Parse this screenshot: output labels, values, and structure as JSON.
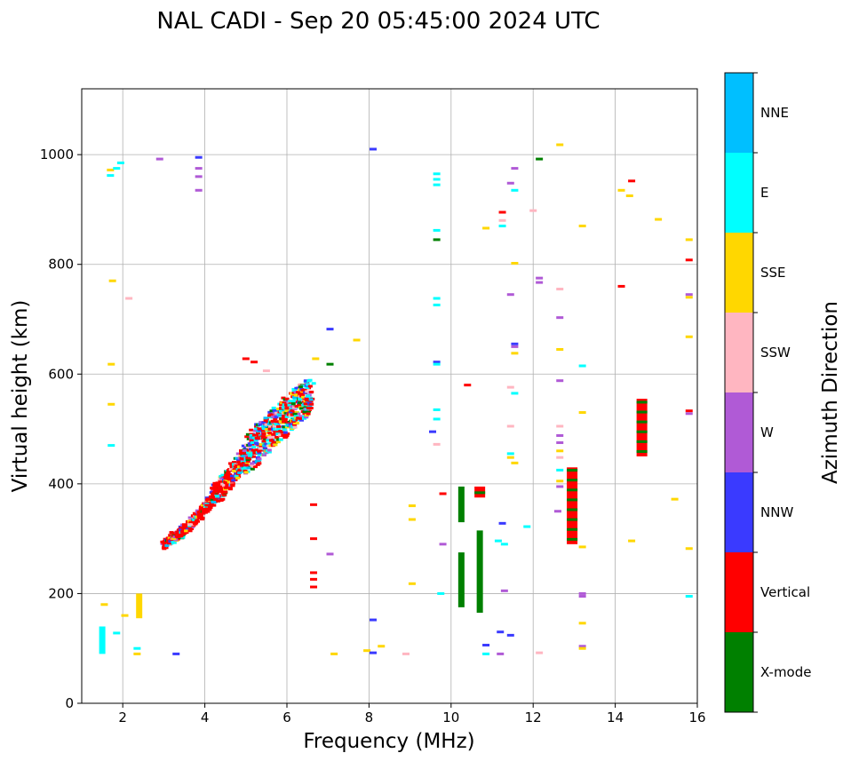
{
  "chart_data": {
    "type": "scatter",
    "title": "NAL CADI - Sep 20 05:45:00 2024 UTC",
    "xlabel": "Frequency (MHz)",
    "ylabel": "Virtual height (km)",
    "xlim": [
      1,
      16
    ],
    "ylim": [
      0,
      1120
    ],
    "xticks": [
      2,
      4,
      6,
      8,
      10,
      12,
      14,
      16
    ],
    "yticks": [
      0,
      200,
      400,
      600,
      800,
      1000
    ],
    "grid": true,
    "colorbar": {
      "label": "Azimuth Direction",
      "categories": [
        {
          "name": "X-mode",
          "color": "#008000"
        },
        {
          "name": "Vertical",
          "color": "#ff0000"
        },
        {
          "name": "NNW",
          "color": "#3a3aff"
        },
        {
          "name": "W",
          "color": "#b05ad6"
        },
        {
          "name": "SSW",
          "color": "#ffb6c1"
        },
        {
          "name": "SSE",
          "color": "#ffd700"
        },
        {
          "name": "E",
          "color": "#00ffff"
        },
        {
          "name": "NNE",
          "color": "#00bfff"
        }
      ]
    },
    "trace": {
      "description": "dense echo trace rising with frequency",
      "points": [
        [
          3.0,
          288
        ],
        [
          3.2,
          300
        ],
        [
          3.4,
          310
        ],
        [
          3.6,
          322
        ],
        [
          3.8,
          338
        ],
        [
          4.0,
          355
        ],
        [
          4.2,
          375
        ],
        [
          4.4,
          392
        ],
        [
          4.6,
          410
        ],
        [
          4.8,
          430
        ],
        [
          5.0,
          450
        ],
        [
          5.2,
          465
        ],
        [
          5.4,
          480
        ],
        [
          5.6,
          495
        ],
        [
          5.8,
          510
        ],
        [
          6.0,
          525
        ],
        [
          6.2,
          540
        ],
        [
          6.4,
          550
        ],
        [
          6.6,
          560
        ]
      ]
    },
    "bars": [
      {
        "x": 10.25,
        "y0": 175,
        "y1": 275,
        "dir": "X-mode"
      },
      {
        "x": 10.25,
        "y0": 330,
        "y1": 395,
        "dir": "X-mode"
      },
      {
        "x": 10.7,
        "y0": 165,
        "y1": 315,
        "dir": "X-mode"
      },
      {
        "x": 10.7,
        "y0": 375,
        "y1": 395,
        "dir": "Vertical"
      },
      {
        "x": 12.95,
        "y0": 290,
        "y1": 430,
        "dir": "Vertical"
      },
      {
        "x": 14.65,
        "y0": 450,
        "y1": 555,
        "dir": "Vertical"
      },
      {
        "x": 2.4,
        "y0": 155,
        "y1": 200,
        "dir": "SSE"
      },
      {
        "x": 1.5,
        "y0": 90,
        "y1": 140,
        "dir": "E"
      }
    ],
    "points": [
      [
        1.55,
        180,
        "SSE"
      ],
      [
        1.7,
        972,
        "SSE"
      ],
      [
        1.85,
        975,
        "E"
      ],
      [
        1.95,
        985,
        "E"
      ],
      [
        1.7,
        962,
        "E"
      ],
      [
        1.75,
        770,
        "SSE"
      ],
      [
        2.15,
        738,
        "SSW"
      ],
      [
        1.72,
        618,
        "SSE"
      ],
      [
        1.72,
        545,
        "SSE"
      ],
      [
        1.72,
        470,
        "E"
      ],
      [
        2.05,
        160,
        "SSE"
      ],
      [
        1.85,
        128,
        "E"
      ],
      [
        2.35,
        100,
        "E"
      ],
      [
        2.35,
        90,
        "SSE"
      ],
      [
        2.9,
        992,
        "W"
      ],
      [
        3.85,
        995,
        "NNW"
      ],
      [
        3.85,
        975,
        "W"
      ],
      [
        3.85,
        960,
        "W"
      ],
      [
        3.85,
        935,
        "W"
      ],
      [
        3.3,
        90,
        "NNW"
      ],
      [
        5.0,
        628,
        "Vertical"
      ],
      [
        5.2,
        622,
        "Vertical"
      ],
      [
        5.5,
        606,
        "SSW"
      ],
      [
        6.7,
        628,
        "SSE"
      ],
      [
        7.05,
        618,
        "X-mode"
      ],
      [
        7.05,
        682,
        "NNW"
      ],
      [
        7.7,
        662,
        "SSE"
      ],
      [
        6.65,
        362,
        "Vertical"
      ],
      [
        6.65,
        300,
        "Vertical"
      ],
      [
        6.65,
        238,
        "Vertical"
      ],
      [
        6.65,
        226,
        "Vertical"
      ],
      [
        6.65,
        212,
        "Vertical"
      ],
      [
        7.05,
        272,
        "W"
      ],
      [
        7.15,
        90,
        "SSE"
      ],
      [
        8.1,
        1010,
        "NNW"
      ],
      [
        8.1,
        152,
        "NNW"
      ],
      [
        8.3,
        104,
        "SSE"
      ],
      [
        7.95,
        96,
        "SSE"
      ],
      [
        8.1,
        92,
        "NNW"
      ],
      [
        8.9,
        90,
        "SSW"
      ],
      [
        9.05,
        360,
        "SSE"
      ],
      [
        9.05,
        335,
        "SSE"
      ],
      [
        9.05,
        218,
        "SSE"
      ],
      [
        9.65,
        965,
        "E"
      ],
      [
        9.65,
        955,
        "E"
      ],
      [
        9.65,
        945,
        "E"
      ],
      [
        9.65,
        862,
        "E"
      ],
      [
        9.65,
        845,
        "X-mode"
      ],
      [
        9.65,
        738,
        "E"
      ],
      [
        9.65,
        726,
        "E"
      ],
      [
        9.65,
        622,
        "NNW"
      ],
      [
        9.65,
        618,
        "E"
      ],
      [
        9.65,
        535,
        "E"
      ],
      [
        9.65,
        518,
        "E"
      ],
      [
        9.55,
        495,
        "NNW"
      ],
      [
        9.65,
        472,
        "SSW"
      ],
      [
        9.8,
        382,
        "Vertical"
      ],
      [
        9.8,
        290,
        "W"
      ],
      [
        9.75,
        200,
        "E"
      ],
      [
        10.85,
        106,
        "NNW"
      ],
      [
        10.85,
        90,
        "E"
      ],
      [
        11.2,
        90,
        "W"
      ],
      [
        10.4,
        580,
        "Vertical"
      ],
      [
        10.85,
        866,
        "SSE"
      ],
      [
        11.25,
        895,
        "Vertical"
      ],
      [
        11.25,
        880,
        "SSW"
      ],
      [
        11.25,
        870,
        "E"
      ],
      [
        11.45,
        948,
        "W"
      ],
      [
        11.55,
        935,
        "E"
      ],
      [
        11.55,
        975,
        "W"
      ],
      [
        11.55,
        802,
        "SSE"
      ],
      [
        11.45,
        745,
        "W"
      ],
      [
        11.55,
        655,
        "NNW"
      ],
      [
        11.55,
        650,
        "W"
      ],
      [
        11.55,
        638,
        "SSE"
      ],
      [
        11.45,
        576,
        "SSW"
      ],
      [
        11.55,
        565,
        "E"
      ],
      [
        11.45,
        505,
        "SSW"
      ],
      [
        11.45,
        455,
        "E"
      ],
      [
        11.45,
        448,
        "SSE"
      ],
      [
        11.55,
        438,
        "SSE"
      ],
      [
        11.25,
        328,
        "NNW"
      ],
      [
        11.15,
        296,
        "E"
      ],
      [
        11.3,
        290,
        "E"
      ],
      [
        11.85,
        322,
        "E"
      ],
      [
        11.3,
        205,
        "W"
      ],
      [
        11.2,
        130,
        "NNW"
      ],
      [
        11.45,
        124,
        "NNW"
      ],
      [
        12.0,
        898,
        "SSW"
      ],
      [
        12.15,
        992,
        "X-mode"
      ],
      [
        12.15,
        775,
        "W"
      ],
      [
        12.15,
        767,
        "W"
      ],
      [
        12.15,
        92,
        "SSW"
      ],
      [
        12.65,
        1018,
        "SSE"
      ],
      [
        12.65,
        755,
        "SSW"
      ],
      [
        12.65,
        703,
        "W"
      ],
      [
        12.65,
        645,
        "SSE"
      ],
      [
        12.65,
        588,
        "W"
      ],
      [
        12.65,
        505,
        "SSW"
      ],
      [
        12.65,
        488,
        "W"
      ],
      [
        12.65,
        475,
        "W"
      ],
      [
        12.65,
        460,
        "SSE"
      ],
      [
        12.65,
        448,
        "SSW"
      ],
      [
        12.65,
        425,
        "E"
      ],
      [
        12.65,
        405,
        "SSE"
      ],
      [
        12.65,
        395,
        "W"
      ],
      [
        12.6,
        350,
        "W"
      ],
      [
        13.2,
        870,
        "SSE"
      ],
      [
        13.2,
        615,
        "E"
      ],
      [
        13.2,
        530,
        "SSE"
      ],
      [
        13.2,
        285,
        "SSE"
      ],
      [
        13.2,
        200,
        "W"
      ],
      [
        13.2,
        195,
        "W"
      ],
      [
        13.2,
        146,
        "SSE"
      ],
      [
        13.2,
        104,
        "W"
      ],
      [
        13.2,
        100,
        "SSE"
      ],
      [
        14.15,
        935,
        "SSE"
      ],
      [
        14.35,
        925,
        "SSE"
      ],
      [
        14.4,
        952,
        "Vertical"
      ],
      [
        14.15,
        760,
        "Vertical"
      ],
      [
        14.4,
        296,
        "SSE"
      ],
      [
        15.05,
        882,
        "SSE"
      ],
      [
        15.45,
        372,
        "SSE"
      ],
      [
        15.8,
        845,
        "SSE"
      ],
      [
        15.8,
        808,
        "Vertical"
      ],
      [
        15.8,
        745,
        "W"
      ],
      [
        15.8,
        740,
        "SSE"
      ],
      [
        15.8,
        668,
        "SSE"
      ],
      [
        15.8,
        533,
        "Vertical"
      ],
      [
        15.8,
        528,
        "W"
      ],
      [
        15.8,
        282,
        "SSE"
      ],
      [
        15.8,
        195,
        "E"
      ]
    ]
  }
}
